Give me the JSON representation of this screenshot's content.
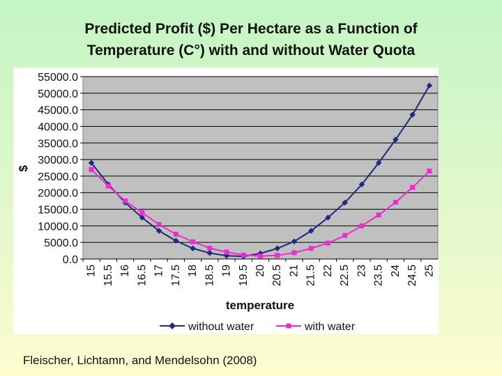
{
  "slide": {
    "title_line1": "Predicted Profit ($) Per Hectare as a Function of",
    "title_line2": "Temperature (C°) with and without Water Quota",
    "citation": "Fleischer, Lichtamn, and Mendelsohn (2008)"
  },
  "chart_data": {
    "type": "line",
    "title": "Predicted Profit ($) Per Hectare as a Function of Temperature (C°) with and without Water Quota",
    "xlabel": "temperature",
    "ylabel": "$",
    "ylim": [
      0,
      55000
    ],
    "yticks": [
      "55000.0",
      "50000.0",
      "45000.0",
      "40000.0",
      "35000.0",
      "30000.0",
      "25000.0",
      "20000.0",
      "15000.0",
      "10000.0",
      "5000.0",
      "0.0"
    ],
    "ytick_values": [
      55000,
      50000,
      45000,
      40000,
      35000,
      30000,
      25000,
      20000,
      15000,
      10000,
      5000,
      0
    ],
    "x": [
      "15",
      "15.5",
      "16",
      "16.5",
      "17",
      "17.5",
      "18",
      "18.5",
      "19",
      "19.5",
      "20",
      "20.5",
      "21",
      "21.5",
      "22",
      "22.5",
      "23",
      "23.5",
      "24",
      "24.5",
      "25"
    ],
    "grid": true,
    "legend_position": "bottom",
    "series": [
      {
        "name": "without water",
        "color": "#1f2a7a",
        "marker": "diamond",
        "values": [
          29000,
          22500,
          17000,
          12500,
          8500,
          5500,
          3200,
          1800,
          1000,
          800,
          1700,
          3200,
          5300,
          8500,
          12500,
          17000,
          22500,
          29000,
          36000,
          43500,
          52300
        ]
      },
      {
        "name": "with water",
        "color": "#ee2ad6",
        "marker": "square",
        "values": [
          27000,
          22000,
          17500,
          14000,
          10400,
          7500,
          5200,
          3300,
          2100,
          1200,
          900,
          1100,
          1900,
          3200,
          4800,
          7100,
          10000,
          13300,
          17100,
          21600,
          26500
        ]
      }
    ]
  }
}
